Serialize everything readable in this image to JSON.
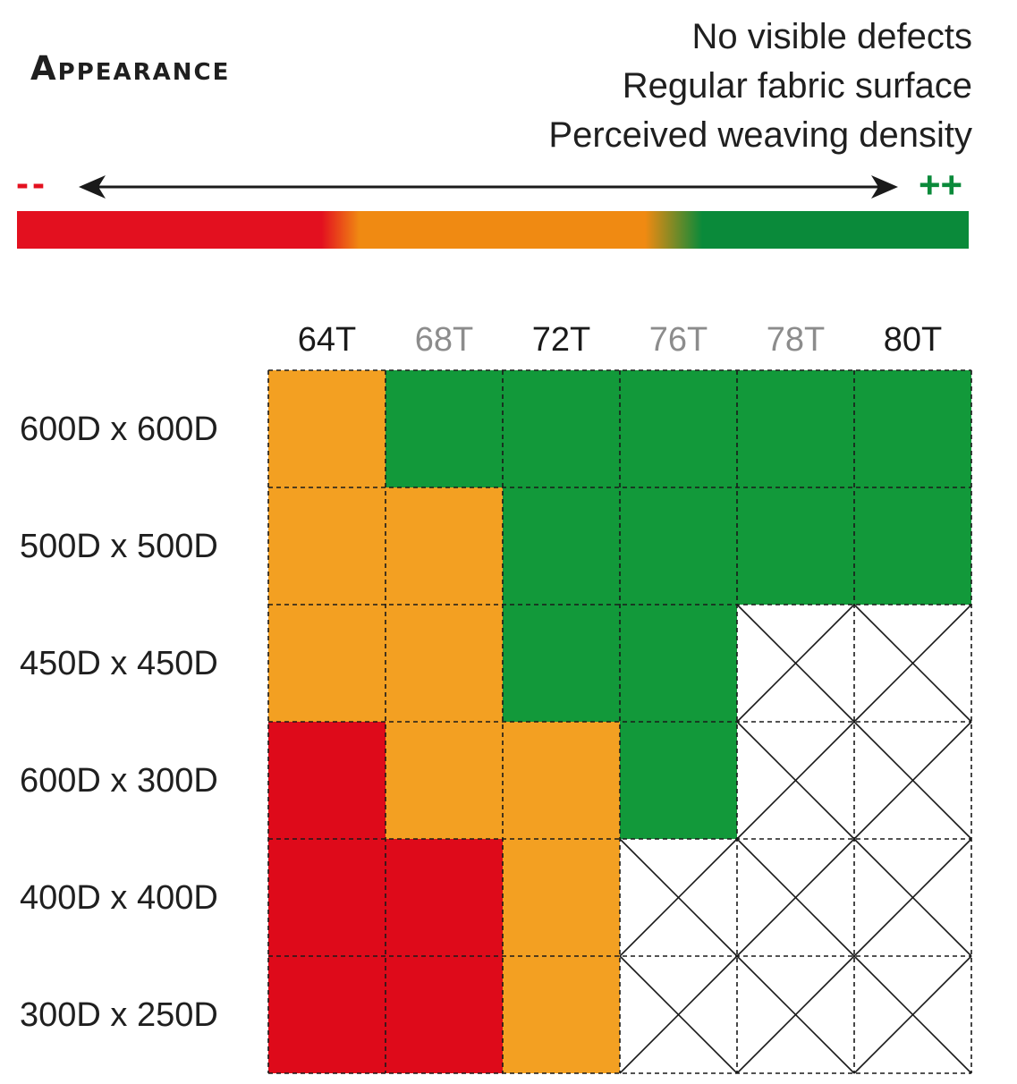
{
  "title": "Appearance",
  "criteria": [
    "No visible defects",
    "Regular fabric surface",
    "Perceived weaving density"
  ],
  "scale": {
    "low_label": "--",
    "high_label": "++",
    "colors": [
      "#e3101f",
      "#f08a12",
      "#0a8a3a"
    ]
  },
  "chart_data": {
    "type": "heatmap",
    "columns": [
      {
        "label": "64T",
        "color": "#1a1a1a"
      },
      {
        "label": "68T",
        "color": "#8c8c8c"
      },
      {
        "label": "72T",
        "color": "#1a1a1a"
      },
      {
        "label": "76T",
        "color": "#8c8c8c"
      },
      {
        "label": "78T",
        "color": "#8c8c8c"
      },
      {
        "label": "80T",
        "color": "#1a1a1a"
      }
    ],
    "rows": [
      "600D x 600D",
      "500D x 500D",
      "450D x 450D",
      "600D x 300D",
      "400D x 400D",
      "300D x 250D"
    ],
    "levels": {
      "red": "#de0a1a",
      "orange": "#f3a022",
      "green": "#12993a",
      "none": "not available"
    },
    "values": [
      [
        "orange",
        "green",
        "green",
        "green",
        "green",
        "green"
      ],
      [
        "orange",
        "orange",
        "green",
        "green",
        "green",
        "green"
      ],
      [
        "orange",
        "orange",
        "green",
        "green",
        "none",
        "none"
      ],
      [
        "red",
        "orange",
        "orange",
        "green",
        "none",
        "none"
      ],
      [
        "red",
        "red",
        "orange",
        "none",
        "none",
        "none"
      ],
      [
        "red",
        "red",
        "orange",
        "none",
        "none",
        "none"
      ]
    ]
  }
}
